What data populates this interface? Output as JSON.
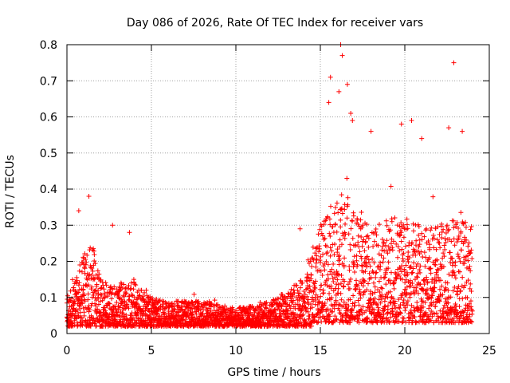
{
  "chart_data": {
    "type": "scatter",
    "title": "Day 086 of 2026, Rate Of TEC Index for receiver vars",
    "xlabel": "GPS time / hours",
    "ylabel": "ROTI / TECUs",
    "xlim": [
      0,
      25
    ],
    "ylim": [
      0,
      0.8
    ],
    "xticks": [
      0,
      5,
      10,
      15,
      20,
      25
    ],
    "yticks": [
      0,
      0.1,
      0.2,
      0.3,
      0.4,
      0.5,
      0.6,
      0.7,
      0.8
    ],
    "x_tick_labels": [
      "0",
      "5",
      "10",
      "15",
      "20",
      "25"
    ],
    "y_tick_labels": [
      "0",
      "0.1",
      "0.2",
      "0.3",
      "0.4",
      "0.5",
      "0.6",
      "0.7",
      "0.8"
    ],
    "grid": true,
    "marker": "+",
    "color": "#ff0000",
    "x_range_of_data": [
      0,
      24
    ],
    "series": [
      {
        "name": "ROTI",
        "profile_hours": [
          0,
          1,
          1.5,
          2,
          3,
          3.5,
          4,
          5,
          6,
          7,
          8,
          9,
          10,
          11,
          12,
          13,
          14,
          14.5,
          15,
          15.5,
          16,
          16.5,
          17,
          18,
          19,
          20,
          21,
          22,
          23,
          24
        ],
        "typical_envelope": [
          0.12,
          0.22,
          0.25,
          0.15,
          0.13,
          0.16,
          0.15,
          0.1,
          0.09,
          0.09,
          0.09,
          0.08,
          0.07,
          0.08,
          0.09,
          0.12,
          0.15,
          0.22,
          0.3,
          0.35,
          0.38,
          0.4,
          0.33,
          0.3,
          0.33,
          0.32,
          0.3,
          0.3,
          0.32,
          0.3
        ],
        "notable_points": [
          {
            "x": 0.7,
            "y": 0.34
          },
          {
            "x": 1.3,
            "y": 0.38
          },
          {
            "x": 2.7,
            "y": 0.3
          },
          {
            "x": 3.7,
            "y": 0.28
          },
          {
            "x": 13.8,
            "y": 0.29
          },
          {
            "x": 15.6,
            "y": 0.71
          },
          {
            "x": 15.5,
            "y": 0.64
          },
          {
            "x": 16.2,
            "y": 0.8
          },
          {
            "x": 16.3,
            "y": 0.77
          },
          {
            "x": 16.6,
            "y": 0.69
          },
          {
            "x": 16.1,
            "y": 0.67
          },
          {
            "x": 16.8,
            "y": 0.61
          },
          {
            "x": 16.9,
            "y": 0.59
          },
          {
            "x": 18.0,
            "y": 0.56
          },
          {
            "x": 19.8,
            "y": 0.58
          },
          {
            "x": 20.4,
            "y": 0.59
          },
          {
            "x": 21.0,
            "y": 0.54
          },
          {
            "x": 22.6,
            "y": 0.57
          },
          {
            "x": 22.9,
            "y": 0.75
          },
          {
            "x": 23.4,
            "y": 0.56
          }
        ]
      }
    ]
  }
}
